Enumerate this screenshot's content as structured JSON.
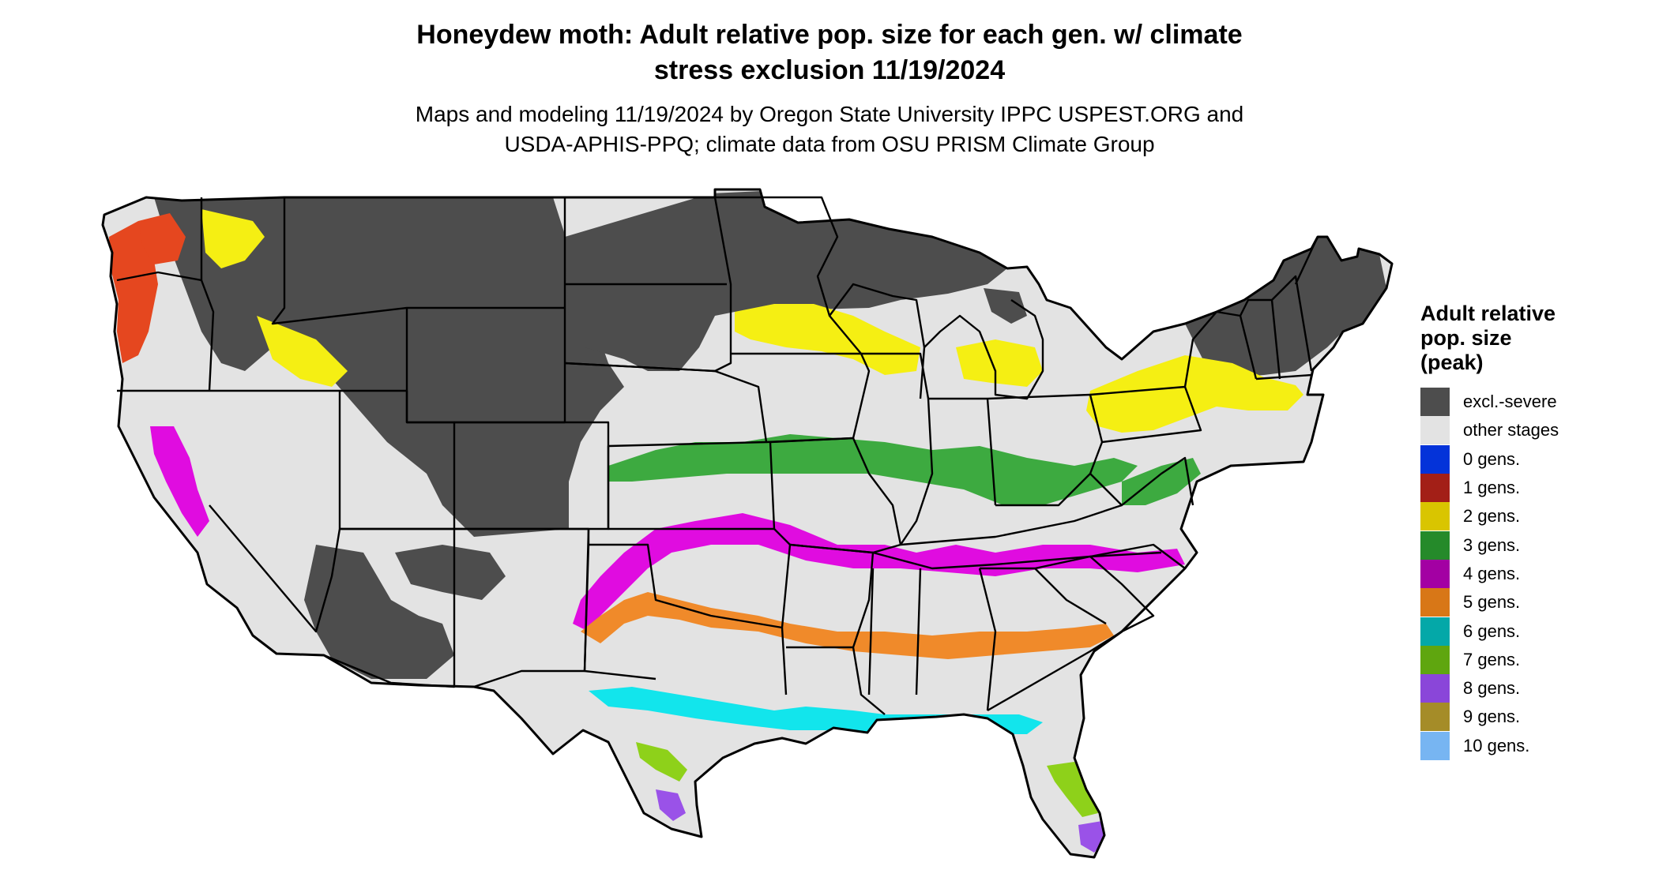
{
  "map": {
    "title_line1": "Honeydew moth: Adult relative pop. size for each gen. w/ climate",
    "title_line2": "stress exclusion 11/19/2024",
    "subtitle_line1": "Maps and modeling 11/19/2024 by Oregon State University IPPC USPEST.ORG and",
    "subtitle_line2": "USDA-APHIS-PPQ; climate data from OSU PRISM Climate Group",
    "region": "Contiguous United States"
  },
  "legend": {
    "title_line1": "Adult relative",
    "title_line2": "pop. size",
    "title_line3": "(peak)",
    "items": [
      {
        "label": "excl.-severe",
        "color": "#4d4d4d"
      },
      {
        "label": "other stages",
        "color": "#e3e3e3"
      },
      {
        "label": "0 gens.",
        "color": "#0433d9"
      },
      {
        "label": "1 gens.",
        "color": "#a31f17"
      },
      {
        "label": "2 gens.",
        "color": "#d9c500"
      },
      {
        "label": "3 gens.",
        "color": "#258a2a"
      },
      {
        "label": "4 gens.",
        "color": "#a300a3"
      },
      {
        "label": "5 gens.",
        "color": "#d87717"
      },
      {
        "label": "6 gens.",
        "color": "#04a8a8"
      },
      {
        "label": "7 gens.",
        "color": "#5fa60f"
      },
      {
        "label": "8 gens.",
        "color": "#8a46d9"
      },
      {
        "label": "9 gens.",
        "color": "#a58c28"
      },
      {
        "label": "10 gens.",
        "color": "#77b5f2"
      }
    ]
  },
  "map_colors": {
    "excluded": "#4d4d4d",
    "other": "#e3e3e3",
    "gen1": "#e5471f",
    "gen2": "#f5ef13",
    "gen3": "#3daa40",
    "gen4": "#e00ce0",
    "gen5": "#f08a2a",
    "gen6": "#12e5ec",
    "gen7": "#8ed11a",
    "gen8": "#9a52e8",
    "border": "#000000"
  }
}
